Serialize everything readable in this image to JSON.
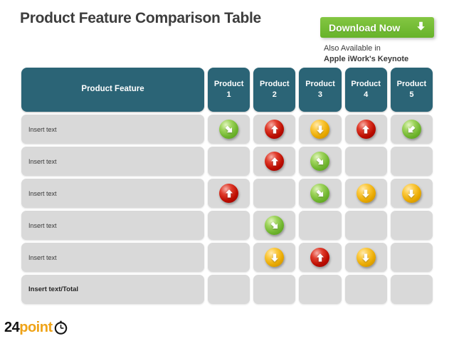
{
  "title": "Product Feature Comparison Table",
  "download": {
    "label": "Download Now",
    "icon": "download-down-arrow-icon",
    "also_line1": "Also Available in",
    "also_line2": "Apple iWork's Keynote"
  },
  "table": {
    "feature_header": "Product Feature",
    "product_headers": [
      "Product 1",
      "Product 2",
      "Product 3",
      "Product 4",
      "Product 5"
    ],
    "rows": [
      {
        "label": "Insert text",
        "bold": false,
        "cells": [
          {
            "color": "green",
            "dir": "down-right"
          },
          {
            "color": "red",
            "dir": "up"
          },
          {
            "color": "yellow",
            "dir": "down"
          },
          {
            "color": "red",
            "dir": "up"
          },
          {
            "color": "green",
            "dir": "down-left"
          }
        ]
      },
      {
        "label": "Insert text",
        "bold": false,
        "cells": [
          null,
          {
            "color": "red",
            "dir": "up"
          },
          {
            "color": "green",
            "dir": "down-right"
          },
          null,
          null
        ]
      },
      {
        "label": "Insert text",
        "bold": false,
        "cells": [
          {
            "color": "red",
            "dir": "up"
          },
          null,
          {
            "color": "green",
            "dir": "down-right"
          },
          {
            "color": "yellow",
            "dir": "down"
          },
          {
            "color": "yellow",
            "dir": "down"
          }
        ]
      },
      {
        "label": "Insert text",
        "bold": false,
        "cells": [
          null,
          {
            "color": "green",
            "dir": "down-right"
          },
          null,
          null,
          null
        ]
      },
      {
        "label": "Insert text",
        "bold": false,
        "cells": [
          null,
          {
            "color": "yellow",
            "dir": "down"
          },
          {
            "color": "red",
            "dir": "up"
          },
          {
            "color": "yellow",
            "dir": "down"
          },
          null
        ]
      },
      {
        "label": "Insert text/Total",
        "bold": true,
        "cells": [
          null,
          null,
          null,
          null,
          null
        ]
      }
    ]
  },
  "logo": {
    "part1": "24",
    "part2": "point",
    "icon": "clock-icon"
  },
  "colors": {
    "header_teal": "#2b6476",
    "cell_gray": "#d9d9d9",
    "button_green": "#6fbe3e",
    "arrow_green": "#6fb52e",
    "arrow_red": "#bc0d00",
    "arrow_yellow": "#e9a900",
    "title_gray": "#3d3d3d",
    "logo_gold": "#efa318"
  }
}
